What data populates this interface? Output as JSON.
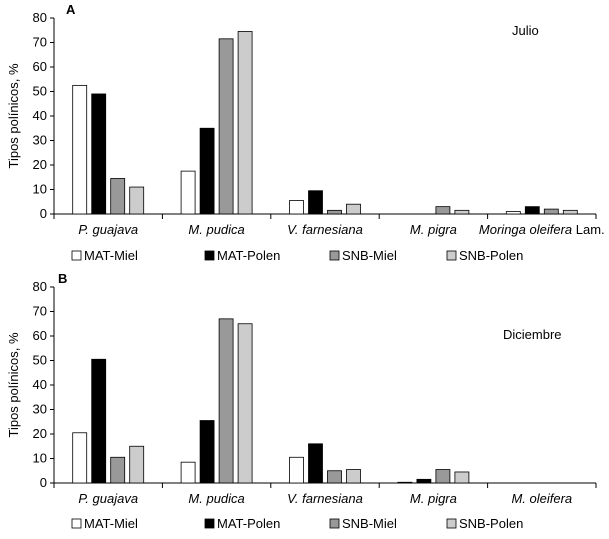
{
  "colors": {
    "MAT-Miel": "#ffffff",
    "MAT-Polen": "#000000",
    "SNB-Miel": "#999999",
    "SNB-Polen": "#cccccc"
  },
  "legend": [
    "MAT-Miel",
    "MAT-Polen",
    "SNB-Miel",
    "SNB-Polen"
  ],
  "chart_data": [
    {
      "type": "bar",
      "panel": "A",
      "month": "Julio",
      "ylabel": "Tipos polínicos, %",
      "ylim": [
        0,
        80
      ],
      "yticks": [
        0,
        10,
        20,
        30,
        40,
        50,
        60,
        70,
        80
      ],
      "categories": [
        {
          "name": "P. guajava"
        },
        {
          "name": "M. pudica"
        },
        {
          "name": "V. farnesiana"
        },
        {
          "name": "M. pigra"
        },
        {
          "name": "Moringa oleifera",
          "suffix": "Lam."
        }
      ],
      "series": [
        {
          "name": "MAT-Miel",
          "values": [
            52.5,
            17.5,
            5.5,
            0,
            1
          ]
        },
        {
          "name": "MAT-Polen",
          "values": [
            49,
            35,
            9.5,
            0,
            3
          ]
        },
        {
          "name": "SNB-Miel",
          "values": [
            14.5,
            71.5,
            1.5,
            3,
            2
          ]
        },
        {
          "name": "SNB-Polen",
          "values": [
            11,
            74.5,
            4,
            1.5,
            1.5
          ]
        }
      ]
    },
    {
      "type": "bar",
      "panel": "B",
      "month": "Diciembre",
      "ylabel": "Tipos polínicos, %",
      "ylim": [
        0,
        80
      ],
      "yticks": [
        0,
        10,
        20,
        30,
        40,
        50,
        60,
        70,
        80
      ],
      "categories": [
        {
          "name": "P. guajava"
        },
        {
          "name": "M. pudica"
        },
        {
          "name": "V. farnesiana"
        },
        {
          "name": "M. pigra"
        },
        {
          "name": "M. oleifera"
        }
      ],
      "series": [
        {
          "name": "MAT-Miel",
          "values": [
            20.5,
            8.5,
            10.5,
            0.3,
            0
          ]
        },
        {
          "name": "MAT-Polen",
          "values": [
            50.5,
            25.5,
            16,
            1.5,
            0
          ]
        },
        {
          "name": "SNB-Miel",
          "values": [
            10.5,
            67,
            5,
            5.5,
            0
          ]
        },
        {
          "name": "SNB-Polen",
          "values": [
            15,
            65,
            5.5,
            4.5,
            0
          ]
        }
      ]
    }
  ]
}
